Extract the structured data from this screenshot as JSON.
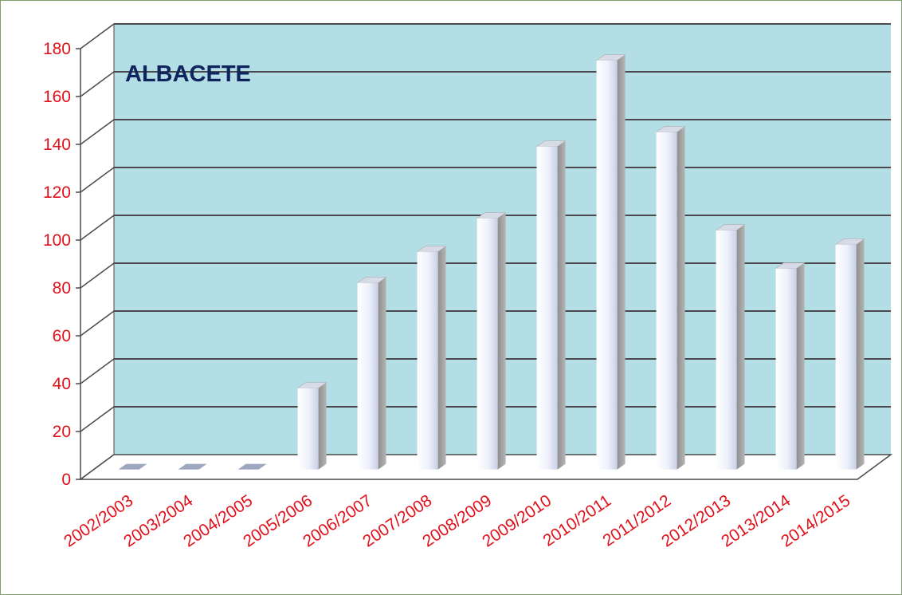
{
  "chart_data": {
    "type": "bar",
    "title": "ALBACETE",
    "xlabel": "",
    "ylabel": "",
    "categories": [
      "2002/2003",
      "2003/2004",
      "2004/2005",
      "2005/2006",
      "2006/2007",
      "2007/2008",
      "2008/2009",
      "2009/2010",
      "2010/2011",
      "2011/2012",
      "2012/2013",
      "2013/2014",
      "2014/2015"
    ],
    "values": [
      0,
      0,
      0,
      34,
      78,
      91,
      105,
      135,
      171,
      141,
      100,
      84,
      94
    ],
    "ylim": [
      0,
      180
    ],
    "yticks": [
      0,
      20,
      40,
      60,
      80,
      100,
      120,
      140,
      160,
      180
    ],
    "grid": true,
    "three_d": true,
    "colors": {
      "wall": "#b4dee5",
      "gridline": "#4a4a4a",
      "tick_labels": "#e0101a",
      "title": "#10245e",
      "bar_face": "#eef1fb",
      "bar_side": "#9a9a9a",
      "frame_border": "#7f9f6a"
    }
  }
}
